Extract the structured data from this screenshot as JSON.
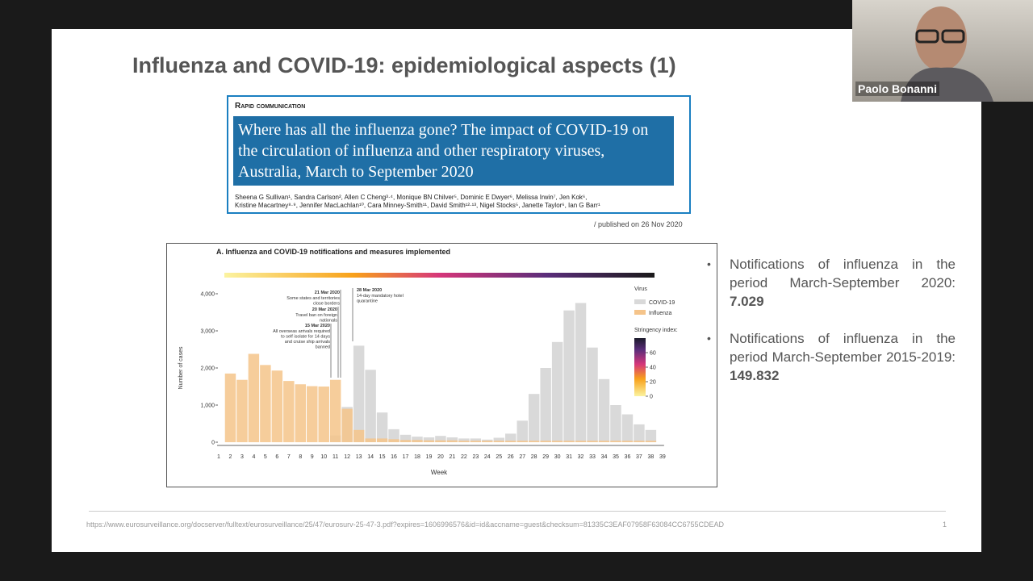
{
  "slide": {
    "title": "Influenza and COVID-19: epidemiological aspects (1)",
    "article": {
      "label": "Rapid communication",
      "headline": "Where has all the influenza gone? The impact of COVID-19 on the circulation of influenza and other respiratory viruses, Australia, March to September 2020",
      "authors_1": "Sheena G Sullivan¹, Sandra Carlson², Allen C Cheng³·⁴, Monique BN Chilver⁵, Dominic E Dwyer⁶, Melissa Irwin⁷, Jen Kok⁶,",
      "authors_2": "Kristine Macartney⁸·⁹, Jennifer MacLachlan¹⁰, Cara Minney-Smith¹¹, David Smith¹²·¹³, Nigel Stocks⁵, Janette Taylor⁶, Ian G Barr¹",
      "published": "/ published on 26 Nov 2020"
    },
    "chart_data": {
      "type": "bar",
      "title": "A. Influenza and COVID-19 notifications and measures implemented",
      "x_label": "Week",
      "y_label": "Number of cases",
      "categories": [
        "1",
        "2",
        "3",
        "4",
        "5",
        "6",
        "7",
        "8",
        "9",
        "10",
        "11",
        "12",
        "13",
        "14",
        "15",
        "16",
        "17",
        "18",
        "19",
        "20",
        "21",
        "22",
        "23",
        "24",
        "25",
        "26",
        "27",
        "28",
        "29",
        "30",
        "31",
        "32",
        "33",
        "34",
        "35",
        "36",
        "37",
        "38",
        "39"
      ],
      "legend_title": "Virus",
      "series": [
        {
          "name": "COVID-19",
          "color": "#d9d9d9",
          "values": [
            null,
            0,
            0,
            0,
            0,
            0,
            0,
            0,
            0,
            0,
            180,
            950,
            2600,
            1950,
            800,
            350,
            200,
            150,
            130,
            170,
            130,
            100,
            100,
            70,
            120,
            230,
            580,
            1300,
            2000,
            2700,
            3550,
            3750,
            2550,
            1700,
            1000,
            750,
            480,
            330,
            null
          ]
        },
        {
          "name": "Influenza",
          "color": "#f5c48a",
          "values": [
            null,
            1850,
            1680,
            2380,
            2080,
            1930,
            1650,
            1560,
            1510,
            1500,
            1680,
            900,
            330,
            100,
            100,
            80,
            60,
            60,
            50,
            50,
            50,
            40,
            40,
            40,
            40,
            40,
            40,
            40,
            40,
            40,
            40,
            40,
            40,
            40,
            40,
            40,
            40,
            40,
            null
          ]
        }
      ],
      "ylim": [
        0,
        4000
      ],
      "yticks": [
        0,
        {
          "value": 1000,
          "label": "1,000"
        },
        {
          "value": 2000,
          "label": "2,000"
        },
        {
          "value": 3000,
          "label": "3,000"
        },
        {
          "value": 4000,
          "label": "4,000"
        }
      ],
      "stringency_title": "Stringency index:",
      "stringency_lim": [
        0,
        80
      ],
      "stringency_ticks": [
        0,
        20,
        40,
        60
      ],
      "annotations": [
        {
          "date": "21 Mar 2020",
          "text": "Some states and territories close borders"
        },
        {
          "date": "20 Mar 2020",
          "text": "Travel ban on foreign nationals"
        },
        {
          "date": "15 Mar 2020",
          "text": "All overseas arrivals required to self isolate for 14 days and cruise ship arrivals banned"
        },
        {
          "date": "28 Mar 2020",
          "text": "14-day mandatory hotel quarantine"
        }
      ]
    },
    "bullets": [
      {
        "text": "Notifications of influenza in the period March-September 2020:",
        "value": "7.029"
      },
      {
        "text": "Notifications of influenza in the period March-September 2015-2019:",
        "value": "149.832"
      }
    ],
    "source_url": "https://www.eurosurveillance.org/docserver/fulltext/eurosurveillance/25/47/eurosurv-25-47-3.pdf?expires=1606996576&id=id&accname=guest&checksum=81335C3EAF07958F63084CC6755CDEAD",
    "page_number": "1"
  },
  "participant": {
    "name": "Paolo Bonanni"
  }
}
